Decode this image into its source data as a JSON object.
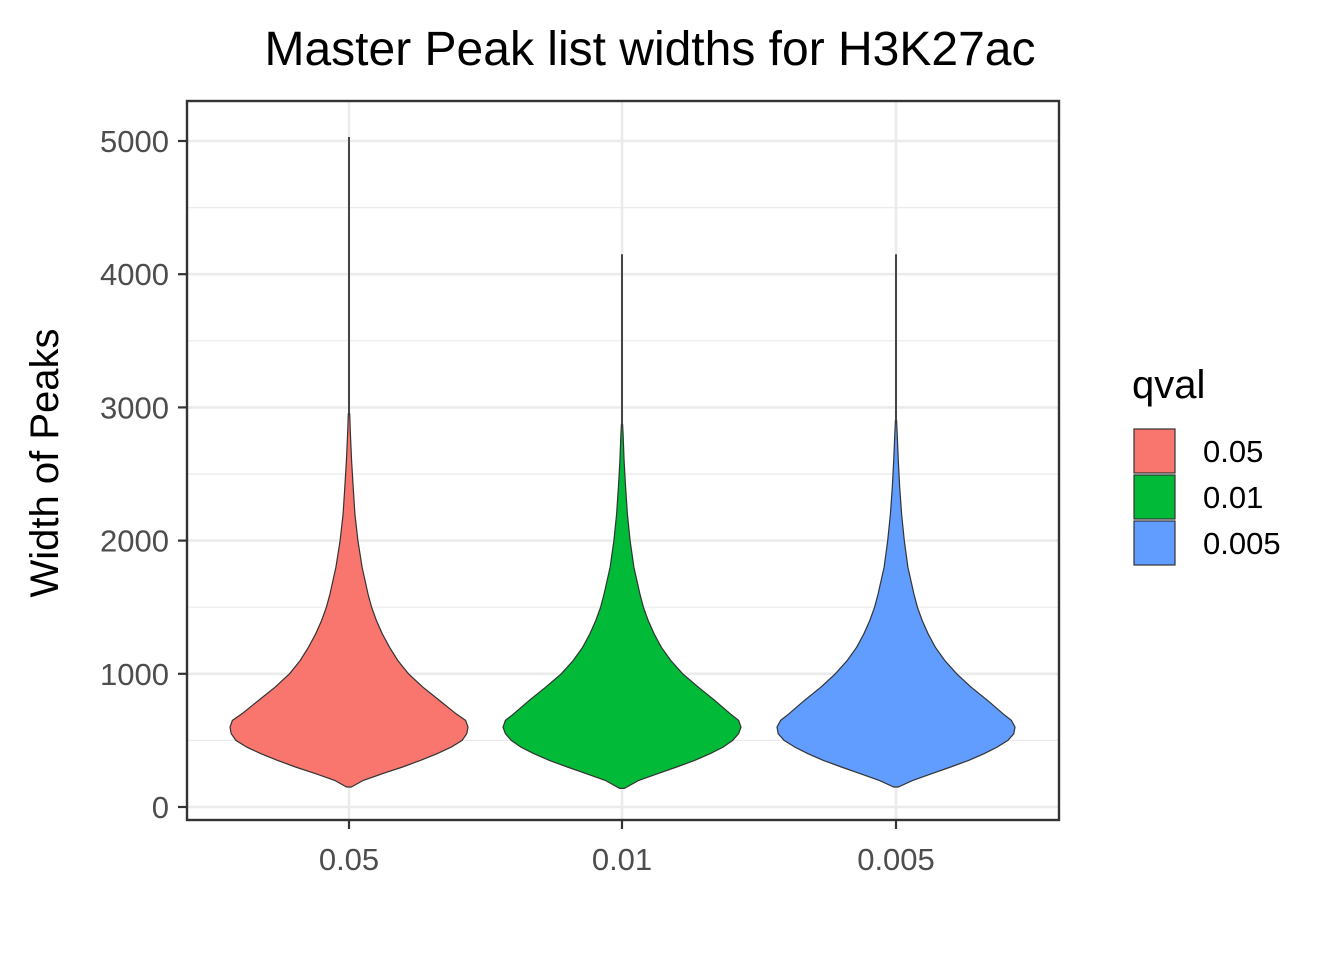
{
  "chart_data": {
    "type": "violin",
    "title": "Master Peak list widths for H3K27ac",
    "xlabel": "",
    "ylabel": "Width of Peaks",
    "categories": [
      "0.05",
      "0.01",
      "0.005"
    ],
    "ylim": [
      -100,
      5050
    ],
    "yticks": [
      0,
      1000,
      2000,
      3000,
      4000,
      5000
    ],
    "grid": true,
    "legend": {
      "title": "qval",
      "position": "right",
      "entries": [
        "0.05",
        "0.01",
        "0.005"
      ]
    },
    "colors": [
      "#F8766D",
      "#00BA38",
      "#619CFF"
    ],
    "series": [
      {
        "category": "0.05",
        "min": 150,
        "max": 5030,
        "fill_top": 2950,
        "profile": [
          [
            150,
            0.02
          ],
          [
            200,
            0.12
          ],
          [
            250,
            0.28
          ],
          [
            300,
            0.45
          ],
          [
            350,
            0.6
          ],
          [
            400,
            0.74
          ],
          [
            450,
            0.86
          ],
          [
            500,
            0.95
          ],
          [
            550,
            0.99
          ],
          [
            600,
            1.0
          ],
          [
            650,
            0.98
          ],
          [
            700,
            0.9
          ],
          [
            800,
            0.76
          ],
          [
            900,
            0.62
          ],
          [
            1000,
            0.5
          ],
          [
            1100,
            0.41
          ],
          [
            1200,
            0.34
          ],
          [
            1300,
            0.28
          ],
          [
            1400,
            0.23
          ],
          [
            1500,
            0.19
          ],
          [
            1600,
            0.16
          ],
          [
            1800,
            0.11
          ],
          [
            2000,
            0.075
          ],
          [
            2200,
            0.05
          ],
          [
            2400,
            0.035
          ],
          [
            2600,
            0.022
          ],
          [
            2800,
            0.012
          ],
          [
            2950,
            0.006
          ]
        ]
      },
      {
        "category": "0.01",
        "min": 140,
        "max": 4150,
        "fill_top": 2870,
        "profile": [
          [
            140,
            0.02
          ],
          [
            200,
            0.14
          ],
          [
            250,
            0.3
          ],
          [
            300,
            0.46
          ],
          [
            350,
            0.61
          ],
          [
            400,
            0.74
          ],
          [
            450,
            0.85
          ],
          [
            500,
            0.93
          ],
          [
            550,
            0.98
          ],
          [
            600,
            1.0
          ],
          [
            650,
            0.98
          ],
          [
            700,
            0.91
          ],
          [
            800,
            0.78
          ],
          [
            900,
            0.64
          ],
          [
            1000,
            0.51
          ],
          [
            1100,
            0.41
          ],
          [
            1200,
            0.33
          ],
          [
            1300,
            0.27
          ],
          [
            1400,
            0.22
          ],
          [
            1500,
            0.18
          ],
          [
            1600,
            0.15
          ],
          [
            1800,
            0.1
          ],
          [
            2000,
            0.068
          ],
          [
            2200,
            0.045
          ],
          [
            2400,
            0.03
          ],
          [
            2600,
            0.018
          ],
          [
            2800,
            0.009
          ],
          [
            2870,
            0.005
          ]
        ]
      },
      {
        "category": "0.005",
        "min": 150,
        "max": 4150,
        "fill_top": 2900,
        "profile": [
          [
            150,
            0.02
          ],
          [
            200,
            0.14
          ],
          [
            250,
            0.3
          ],
          [
            300,
            0.46
          ],
          [
            350,
            0.61
          ],
          [
            400,
            0.74
          ],
          [
            450,
            0.85
          ],
          [
            500,
            0.94
          ],
          [
            550,
            0.99
          ],
          [
            600,
            1.0
          ],
          [
            650,
            0.97
          ],
          [
            700,
            0.9
          ],
          [
            800,
            0.77
          ],
          [
            900,
            0.63
          ],
          [
            1000,
            0.51
          ],
          [
            1100,
            0.41
          ],
          [
            1200,
            0.33
          ],
          [
            1300,
            0.27
          ],
          [
            1400,
            0.22
          ],
          [
            1500,
            0.18
          ],
          [
            1600,
            0.15
          ],
          [
            1800,
            0.1
          ],
          [
            2000,
            0.07
          ],
          [
            2200,
            0.047
          ],
          [
            2400,
            0.031
          ],
          [
            2600,
            0.019
          ],
          [
            2800,
            0.01
          ],
          [
            2900,
            0.005
          ]
        ]
      }
    ]
  }
}
